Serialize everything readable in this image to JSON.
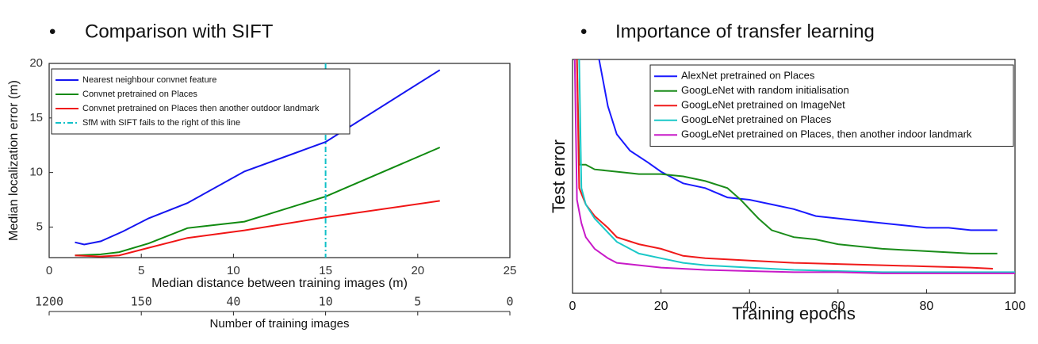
{
  "headings": [
    "Comparison with SIFT",
    "Importance of transfer learning"
  ],
  "chart_data": [
    {
      "type": "line",
      "xlabel": "Median distance between training images (m)",
      "ylabel": "Median localization error (m)",
      "xlim": [
        0,
        25
      ],
      "xticks": [
        0,
        5,
        10,
        15,
        20,
        25
      ],
      "ylim": [
        2.2,
        20
      ],
      "yticks": [
        5,
        10,
        15,
        20
      ],
      "legend": "upper left",
      "series": [
        {
          "name": "Nearest neighbour convnet feature",
          "color": "#1515f0",
          "x": [
            1.4,
            1.9,
            2.8,
            4,
            5.4,
            7.5,
            10.6,
            15,
            21.2
          ],
          "values": [
            3.6,
            3.4,
            3.7,
            4.6,
            5.8,
            7.2,
            10.1,
            12.8,
            19.4
          ]
        },
        {
          "name": "Convnet pretrained on Places",
          "color": "#108a10",
          "x": [
            1.4,
            2.8,
            3.8,
            5.4,
            7.5,
            10.6,
            15,
            21.2
          ],
          "values": [
            2.4,
            2.5,
            2.7,
            3.5,
            4.9,
            5.5,
            7.8,
            12.3
          ]
        },
        {
          "name": "Convnet pretrained on Places then another outdoor landmark",
          "color": "#f01515",
          "x": [
            1.4,
            2.8,
            3.8,
            5.4,
            7.5,
            10.6,
            15,
            21.2
          ],
          "values": [
            2.4,
            2.3,
            2.4,
            3.1,
            4.0,
            4.7,
            5.9,
            7.4
          ]
        }
      ],
      "vline": {
        "name": "SfM with SIFT fails to the right of this line",
        "color": "#10c0c8",
        "x": 15
      },
      "x2label": "Number of training images",
      "x2ticks": [
        {
          "value": 0,
          "label": "1200"
        },
        {
          "value": 5,
          "label": "150"
        },
        {
          "value": 10,
          "label": "40"
        },
        {
          "value": 15,
          "label": "10"
        },
        {
          "value": 20,
          "label": "5"
        },
        {
          "value": 25,
          "label": "0"
        }
      ]
    },
    {
      "type": "line",
      "xlabel": "Training epochs",
      "ylabel": "Test error",
      "xlim": [
        0,
        100
      ],
      "xticks": [
        0,
        20,
        40,
        60,
        80,
        100
      ],
      "ylim": [
        0,
        1
      ],
      "legend": "upper right",
      "series": [
        {
          "name": "AlexNet pretrained on Places",
          "color": "#1a1aff",
          "x": [
            6,
            8,
            10,
            13,
            17,
            20,
            25,
            30,
            35,
            40,
            45,
            50,
            55,
            60,
            65,
            70,
            75,
            80,
            85,
            90,
            96
          ],
          "values": [
            1.0,
            0.8,
            0.68,
            0.61,
            0.56,
            0.52,
            0.47,
            0.45,
            0.41,
            0.4,
            0.38,
            0.36,
            0.33,
            0.32,
            0.31,
            0.3,
            0.29,
            0.28,
            0.28,
            0.27,
            0.27
          ]
        },
        {
          "name": "GoogLeNet with random initialisation",
          "color": "#1a8c1a",
          "x": [
            1,
            1.5,
            3,
            5,
            10,
            15,
            20,
            25,
            30,
            35,
            38,
            42,
            45,
            50,
            55,
            60,
            65,
            70,
            80,
            90,
            96
          ],
          "values": [
            1.0,
            0.55,
            0.55,
            0.53,
            0.52,
            0.51,
            0.51,
            0.5,
            0.48,
            0.45,
            0.4,
            0.32,
            0.27,
            0.24,
            0.23,
            0.21,
            0.2,
            0.19,
            0.18,
            0.17,
            0.17
          ]
        },
        {
          "name": "GoogLeNet pretrained on ImageNet",
          "color": "#f01a1a",
          "x": [
            1,
            1.5,
            3,
            5,
            8,
            10,
            15,
            20,
            25,
            30,
            40,
            50,
            60,
            70,
            80,
            90,
            95
          ],
          "values": [
            1.0,
            0.45,
            0.38,
            0.33,
            0.28,
            0.24,
            0.21,
            0.19,
            0.16,
            0.15,
            0.14,
            0.13,
            0.125,
            0.12,
            0.115,
            0.11,
            0.105
          ]
        },
        {
          "name": "GoogLeNet pretrained on Places",
          "color": "#1ac8c8",
          "x": [
            1.5,
            2,
            3,
            5,
            8,
            10,
            15,
            20,
            25,
            30,
            40,
            50,
            60,
            70,
            80,
            90,
            100
          ],
          "values": [
            1.0,
            0.45,
            0.38,
            0.32,
            0.26,
            0.22,
            0.17,
            0.15,
            0.13,
            0.12,
            0.11,
            0.1,
            0.095,
            0.09,
            0.09,
            0.09,
            0.09
          ]
        },
        {
          "name": "GoogLeNet pretrained on Places, then another indoor landmark",
          "color": "#c81ac8",
          "x": [
            0.5,
            1,
            2,
            3,
            5,
            8,
            10,
            15,
            20,
            30,
            40,
            50,
            60,
            70,
            80,
            90,
            100
          ],
          "values": [
            1.0,
            0.4,
            0.3,
            0.24,
            0.19,
            0.15,
            0.13,
            0.12,
            0.11,
            0.1,
            0.095,
            0.09,
            0.09,
            0.085,
            0.085,
            0.085,
            0.085
          ]
        }
      ]
    }
  ]
}
